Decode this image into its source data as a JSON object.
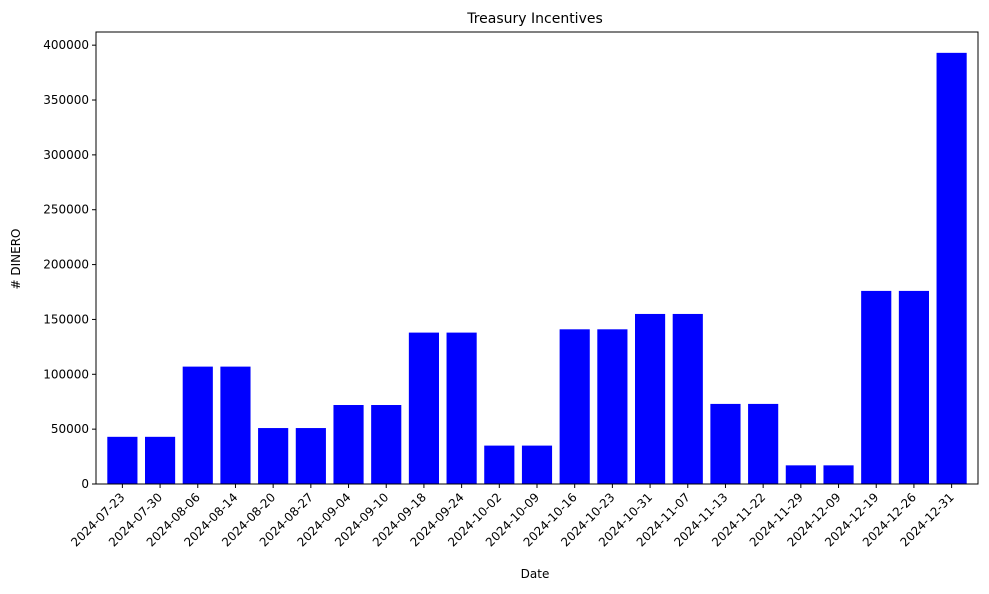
{
  "chart_data": {
    "type": "bar",
    "title": "Treasury Incentives",
    "xlabel": "Date",
    "ylabel": "# DINERO",
    "categories": [
      "2024-07-23",
      "2024-07-30",
      "2024-08-06",
      "2024-08-14",
      "2024-08-20",
      "2024-08-27",
      "2024-09-04",
      "2024-09-10",
      "2024-09-18",
      "2024-09-24",
      "2024-10-02",
      "2024-10-09",
      "2024-10-16",
      "2024-10-23",
      "2024-10-31",
      "2024-11-07",
      "2024-11-13",
      "2024-11-22",
      "2024-11-29",
      "2024-12-09",
      "2024-12-19",
      "2024-12-26",
      "2024-12-31"
    ],
    "values": [
      43000,
      43000,
      107000,
      107000,
      51000,
      51000,
      72000,
      72000,
      138000,
      138000,
      35000,
      35000,
      141000,
      141000,
      155000,
      155000,
      73000,
      73000,
      17000,
      17000,
      176000,
      176000,
      393000
    ],
    "ylim": [
      0,
      412000
    ],
    "yticks": [
      0,
      50000,
      100000,
      150000,
      200000,
      250000,
      300000,
      350000,
      400000
    ],
    "grid": false,
    "bar_color": "#0000ff"
  }
}
